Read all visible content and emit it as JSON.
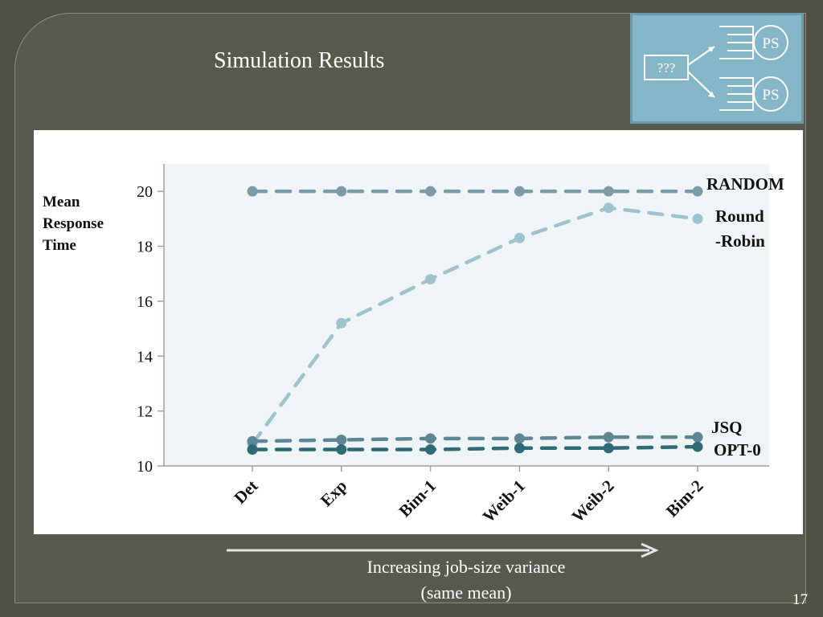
{
  "slide": {
    "title": "Simulation Results",
    "number": "17",
    "caption_line1": "Increasing job-size variance",
    "caption_line2": "(same mean)"
  },
  "diagram": {
    "dispatcher_label": "???",
    "server_labels": [
      "PS",
      "PS"
    ]
  },
  "y_title": [
    "Mean",
    "Response",
    "Time"
  ],
  "series_labels": {
    "random": "RANDOM",
    "round_robin_1": "Round",
    "round_robin_2": "-Robin",
    "jsq": "JSQ",
    "opt0": "OPT-0"
  },
  "colors": {
    "background": "#4e5044",
    "frame": "#575a4d",
    "plot_area": "#eff4f7",
    "random": "#7d9ba6",
    "round_robin": "#9ec3cf",
    "jsq": "#5f8793",
    "opt0": "#2f6a77",
    "diagram_bg": "#86b7c8"
  },
  "chart_data": {
    "type": "line",
    "categories": [
      "Det",
      "Exp",
      "Bim-1",
      "Weib-1",
      "Weib-2",
      "Bim-2"
    ],
    "ylim": [
      10,
      21
    ],
    "yticks": [
      10,
      12,
      14,
      16,
      18,
      20
    ],
    "grid": false,
    "series": [
      {
        "name": "RANDOM",
        "values": [
          20,
          20,
          20,
          20,
          20,
          20
        ]
      },
      {
        "name": "Round-Robin",
        "values": [
          10.8,
          15.2,
          16.8,
          18.3,
          19.4,
          19.0
        ]
      },
      {
        "name": "JSQ",
        "values": [
          10.9,
          10.95,
          11.0,
          11.0,
          11.05,
          11.05
        ]
      },
      {
        "name": "OPT-0",
        "values": [
          10.6,
          10.6,
          10.6,
          10.65,
          10.65,
          10.7
        ]
      }
    ]
  }
}
